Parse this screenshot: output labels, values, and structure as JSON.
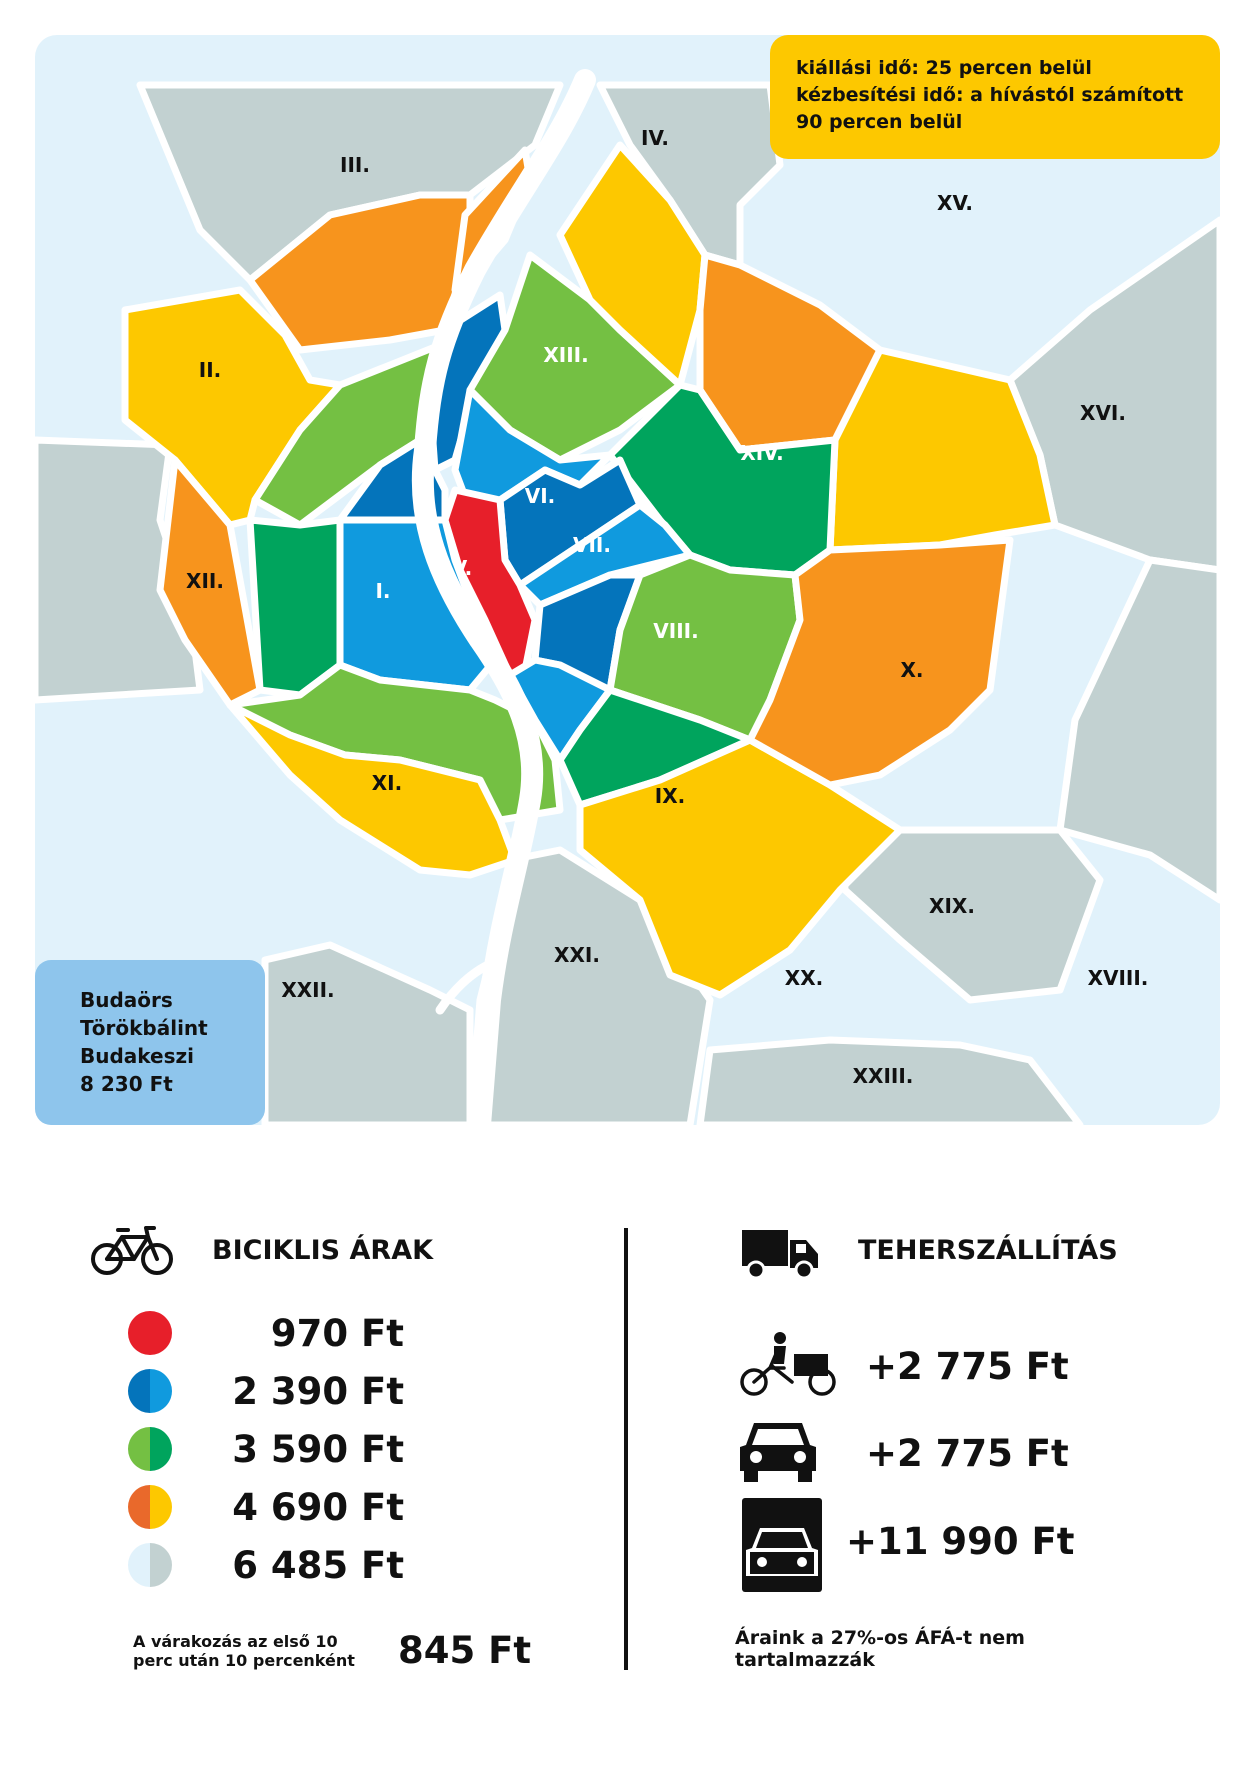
{
  "colors": {
    "red": "#e71f2a",
    "dark_blue": "#0474bb",
    "light_blue": "#109ade",
    "light_green": "#74c043",
    "dark_green": "#00a45d",
    "orange": "#f7941d",
    "yellow": "#fdc800",
    "pale_blue": "#e1f2fb",
    "grey": "#c2d1d1",
    "suburb_box": "#8ec5ec"
  },
  "map": {
    "districts": {
      "I": "I.",
      "II": "II.",
      "III": "III.",
      "IV": "IV.",
      "V": "V.",
      "VI": "VI.",
      "VII": "VII.",
      "VIII": "VIII.",
      "IX": "IX.",
      "X": "X.",
      "XI": "XI.",
      "XII": "XII.",
      "XIII": "XIII.",
      "XIV": "XIV.",
      "XV": "XV.",
      "XVI": "XVI.",
      "XVIII": "XVIII.",
      "XIX": "XIX.",
      "XX": "XX.",
      "XXI": "XXI.",
      "XXII": "XXII.",
      "XXIII": "XXIII."
    }
  },
  "time_info": {
    "line1": "kiállási idő: 25 percen belül",
    "line2": "kézbesítési idő: a hívástól számított",
    "line3": "90 percen belül"
  },
  "suburbs": {
    "towns": [
      "Budaörs",
      "Törökbálint",
      "Budakeszi"
    ],
    "price": "8 230 Ft"
  },
  "bike_prices": {
    "icon": "bicycle-icon",
    "title": "BICIKLIS ÁRAK",
    "rows": [
      {
        "price": "970 Ft",
        "colors": [
          "#e71f2a",
          "#e71f2a"
        ]
      },
      {
        "price": "2 390 Ft",
        "colors": [
          "#0474bb",
          "#109ade"
        ]
      },
      {
        "price": "3 590 Ft",
        "colors": [
          "#74c043",
          "#00a45d"
        ]
      },
      {
        "price": "4 690 Ft",
        "colors": [
          "#e9692b",
          "#fdc800"
        ]
      },
      {
        "price": "6 485 Ft",
        "colors": [
          "#e1f2fb",
          "#c2d1d1"
        ]
      }
    ],
    "waiting_note_line1": "A várakozás az első 10",
    "waiting_note_line2": "perc után 10 percenként",
    "waiting_price": "845 Ft"
  },
  "freight": {
    "icon": "truck-icon",
    "title": "TEHERSZÁLLÍTÁS",
    "rows": [
      {
        "icon": "cargo-bike-icon",
        "price": "+2 775 Ft"
      },
      {
        "icon": "car-icon",
        "price": "+2 775 Ft"
      },
      {
        "icon": "van-icon",
        "price": "+11 990 Ft"
      }
    ],
    "vat_note_line1": "Áraink a 27%-os ÁFÁ-t nem",
    "vat_note_line2": "tartalmazzák"
  }
}
